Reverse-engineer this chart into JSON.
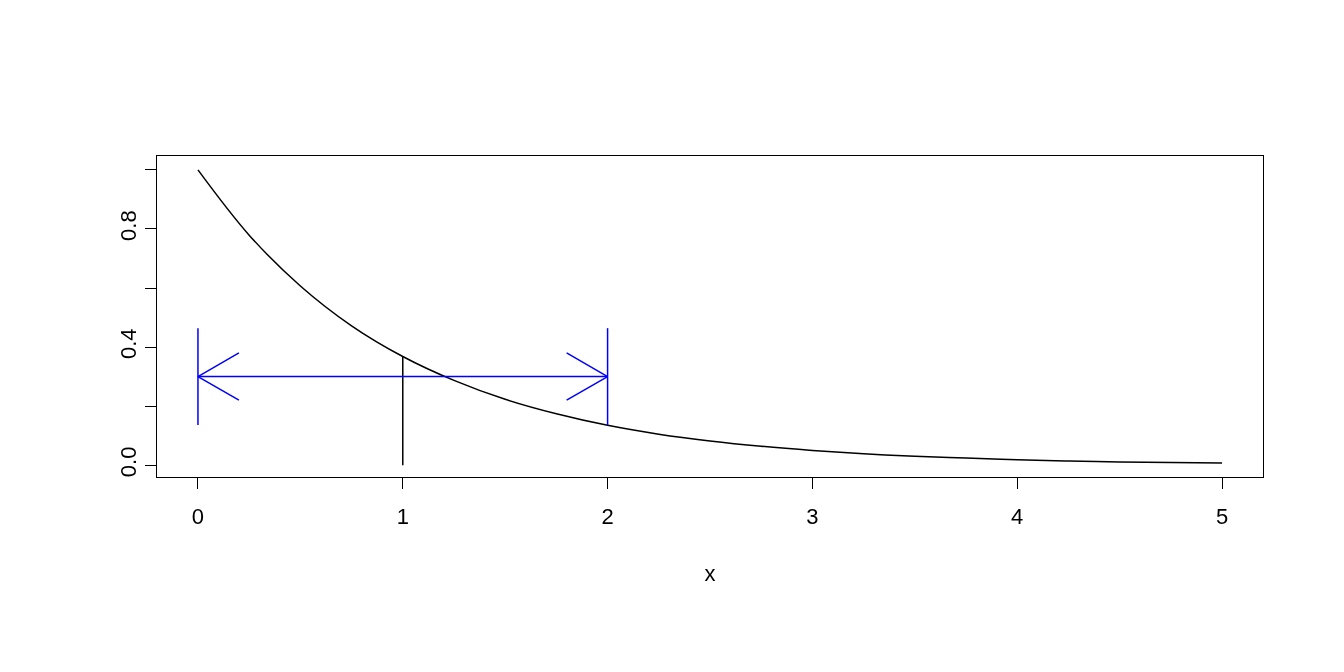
{
  "chart_data": {
    "type": "line",
    "xlabel": "x",
    "xlim": [
      -0.2,
      5.2
    ],
    "ylim": [
      -0.04,
      1.047
    ],
    "xticks": [
      0,
      1,
      2,
      3,
      4,
      5
    ],
    "yticks": [
      {
        "value": 0,
        "label": "0.0"
      },
      {
        "value": 0.2,
        "label": null
      },
      {
        "value": 0.4,
        "label": "0.4"
      },
      {
        "value": 0.6,
        "label": null
      },
      {
        "value": 0.8,
        "label": "0.8"
      },
      {
        "value": 1,
        "label": null
      }
    ],
    "grid": false,
    "marker": "none",
    "line_style": "solid",
    "series": [
      {
        "color": "#000000",
        "x": [
          0,
          0.25,
          0.5,
          0.75,
          1,
          1.25,
          1.5,
          1.75,
          2,
          2.25,
          2.5,
          2.75,
          3,
          3.25,
          3.5,
          3.75,
          4,
          4.25,
          4.5,
          4.75,
          5
        ],
        "values": [
          1,
          0.779,
          0.607,
          0.472,
          0.368,
          0.287,
          0.223,
          0.174,
          0.135,
          0.105,
          0.082,
          0.064,
          0.05,
          0.039,
          0.03,
          0.024,
          0.018,
          0.014,
          0.011,
          0.009,
          0.007
        ]
      },
      {
        "color": "#000000",
        "x": [
          1,
          1
        ],
        "values": [
          0,
          0.368
        ]
      },
      {
        "color": "#0000ff",
        "x": [
          0,
          2
        ],
        "values": [
          0.3,
          0.3
        ]
      },
      {
        "color": "#0000ff",
        "x": [
          0,
          0
        ],
        "values": [
          0.136,
          0.464
        ]
      },
      {
        "color": "#0000ff",
        "x": [
          2,
          2
        ],
        "values": [
          0.136,
          0.464
        ]
      },
      {
        "color": "#0000ff",
        "x": [
          0.2,
          0,
          0.2
        ],
        "values": [
          0.38,
          0.3,
          0.22
        ]
      },
      {
        "color": "#0000ff",
        "x": [
          1.8,
          2,
          1.8
        ],
        "values": [
          0.38,
          0.3,
          0.22
        ]
      }
    ]
  }
}
